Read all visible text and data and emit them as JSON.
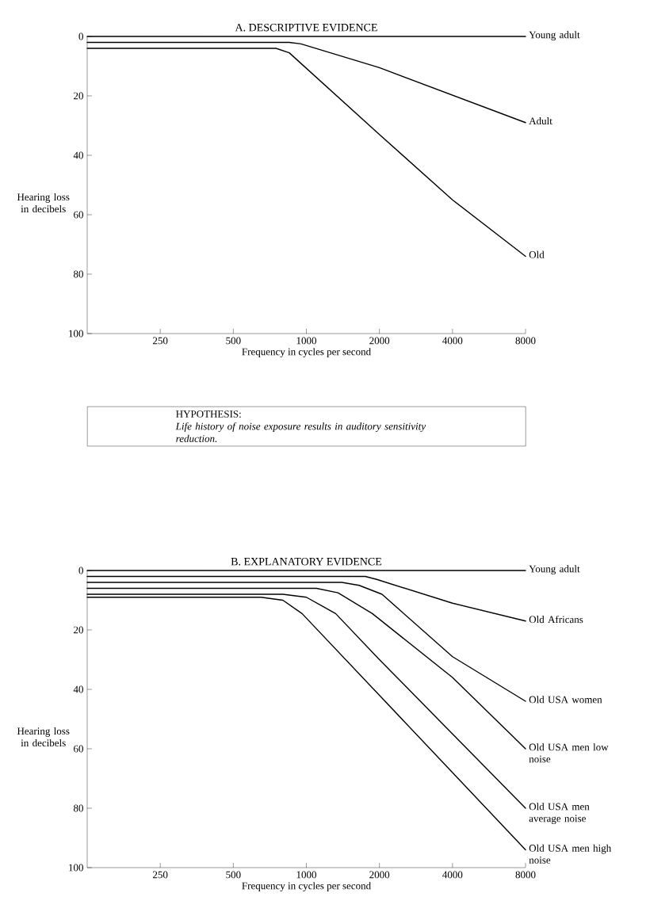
{
  "chart_data": [
    {
      "type": "line",
      "title": "A. DESCRIPTIVE EVIDENCE",
      "xlabel": "Frequency in cycles per second",
      "ylabel": "Hearing loss in decibels",
      "log": "x",
      "xlim": [
        125,
        8000
      ],
      "xticks": [
        250,
        500,
        1000,
        2000,
        4000,
        8000
      ],
      "ylim": [
        100,
        0
      ],
      "yticks": [
        0,
        20,
        40,
        60,
        80,
        100
      ],
      "series": [
        {
          "name": "Young adult",
          "color": "#000000",
          "x": [
            125,
            8000
          ],
          "values": [
            0,
            0
          ]
        },
        {
          "name": "Adult",
          "color": "#000000",
          "x": [
            125,
            850,
            950,
            2000,
            8000
          ],
          "values": [
            2,
            2,
            2.5,
            10.5,
            29
          ]
        },
        {
          "name": "Old",
          "color": "#000000",
          "x": [
            125,
            750,
            850,
            2000,
            4000,
            8000
          ],
          "values": [
            4,
            4,
            5.5,
            33,
            55,
            74
          ]
        }
      ],
      "annotations": [
        "HYPOTHESIS:",
        "Life history of noise exposure results in auditory sensitivity reduction."
      ]
    },
    {
      "type": "line",
      "title": "B. EXPLANATORY EVIDENCE",
      "xlabel": "Frequency in cycles per second",
      "ylabel": "Hearing loss in decibels",
      "log": "x",
      "xlim": [
        125,
        8000
      ],
      "xticks": [
        250,
        500,
        1000,
        2000,
        4000,
        8000
      ],
      "ylim": [
        100,
        0
      ],
      "yticks": [
        0,
        20,
        40,
        60,
        80,
        100
      ],
      "series": [
        {
          "name": "Young adult",
          "color": "#000000",
          "x": [
            125,
            8000
          ],
          "values": [
            0,
            0
          ]
        },
        {
          "name": "Old Africans",
          "color": "#000000",
          "x": [
            125,
            1750,
            1950,
            4000,
            8000
          ],
          "values": [
            2,
            2,
            3,
            11,
            17
          ]
        },
        {
          "name": "Old USA women",
          "color": "#000000",
          "x": [
            125,
            1400,
            1650,
            2050,
            4000,
            8000
          ],
          "values": [
            4,
            4,
            5,
            8,
            29,
            44
          ]
        },
        {
          "name": "Old USA men low noise",
          "color": "#000000",
          "x": [
            125,
            1100,
            1350,
            1870,
            4000,
            8000
          ],
          "values": [
            6,
            6,
            7.5,
            14.5,
            36,
            60
          ]
        },
        {
          "name": "Old USA men average noise",
          "color": "#000000",
          "x": [
            125,
            800,
            1000,
            1320,
            2000,
            4000,
            8000
          ],
          "values": [
            8,
            8,
            9,
            14.5,
            30,
            55,
            80
          ]
        },
        {
          "name": "Old USA men high noise",
          "color": "#000000",
          "x": [
            125,
            650,
            800,
            960,
            2000,
            4000,
            8000
          ],
          "values": [
            9,
            9,
            10,
            14.5,
            42,
            68,
            94
          ]
        }
      ]
    }
  ]
}
